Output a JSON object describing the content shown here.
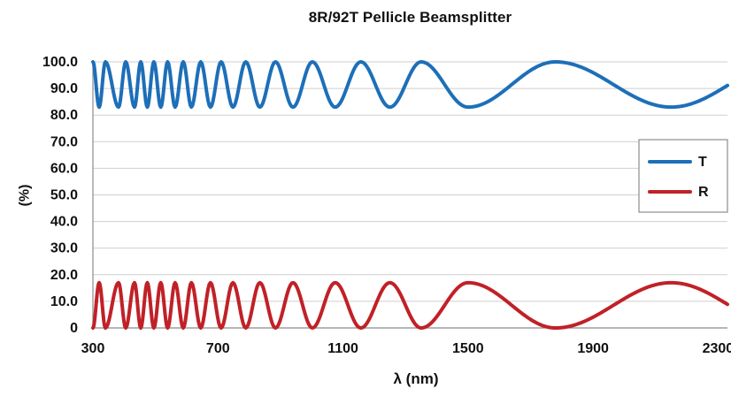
{
  "chart_data": {
    "type": "line",
    "title": "8R/92T Pellicle Beamsplitter",
    "xlabel": "λ (nm)",
    "ylabel": "(%)",
    "xlim": [
      300,
      2330
    ],
    "ylim": [
      0,
      100
    ],
    "x_ticks": [
      300,
      700,
      1100,
      1500,
      1900,
      2300
    ],
    "y_ticks": [
      {
        "value": 0,
        "label": "0"
      },
      {
        "value": 10,
        "label": "10.0"
      },
      {
        "value": 20,
        "label": "20.0"
      },
      {
        "value": 30,
        "label": "30.0"
      },
      {
        "value": 40,
        "label": "40.0"
      },
      {
        "value": 50,
        "label": "50.0"
      },
      {
        "value": 60,
        "label": "60.0"
      },
      {
        "value": 70,
        "label": "70.0"
      },
      {
        "value": 80,
        "label": "80.0"
      },
      {
        "value": 90,
        "label": "90.0"
      },
      {
        "value": 100,
        "label": "100.0"
      }
    ],
    "grid": "horizontal",
    "legend_position": "right",
    "series": [
      {
        "name": "T",
        "color": "#1d6fb8",
        "range": [
          83,
          100
        ],
        "minimum_x": [
          320,
          382,
          433,
          474,
          517,
          563,
          615,
          676,
          748,
          834,
          940,
          1075,
          1250,
          1500,
          2150
        ],
        "maximum_x": [
          340,
          405,
          453,
          495,
          539,
          589,
          645,
          710,
          789,
          884,
          1002,
          1157,
          1350,
          1780
        ]
      },
      {
        "name": "R",
        "color": "#c02127",
        "range": [
          0,
          17
        ],
        "maximum_x": [
          320,
          382,
          433,
          474,
          517,
          563,
          615,
          676,
          748,
          834,
          940,
          1075,
          1250,
          1500,
          2150
        ],
        "minimum_x": [
          340,
          405,
          453,
          495,
          539,
          589,
          645,
          710,
          789,
          884,
          1002,
          1157,
          1350,
          1780
        ]
      }
    ]
  }
}
